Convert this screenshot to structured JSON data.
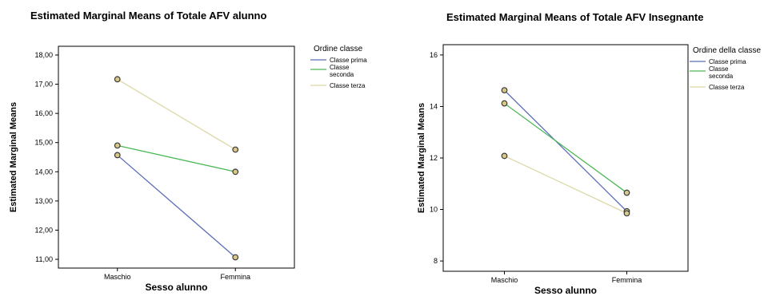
{
  "chart_data": [
    {
      "type": "line",
      "title": "Estimated Marginal Means of Totale AFV alunno",
      "xlabel": "Sesso alunno",
      "ylabel": "Estimated Marginal Means",
      "categories": [
        "Maschio",
        "Femmina"
      ],
      "ylim": [
        10.7,
        18.3
      ],
      "yticks": [
        "11,00",
        "12,00",
        "13,00",
        "14,00",
        "15,00",
        "16,00",
        "17,00",
        "18,00"
      ],
      "ytick_values": [
        11,
        12,
        13,
        14,
        15,
        16,
        17,
        18
      ],
      "legend_title": "Ordine classe",
      "legend_position": "right",
      "series": [
        {
          "name": "Classe prima",
          "color": "#5b6db8",
          "values": [
            14.57,
            11.07
          ]
        },
        {
          "name": "Classe seconda",
          "color": "#4ab856",
          "values": [
            14.9,
            14.0
          ]
        },
        {
          "name": "Classe terza",
          "color": "#ddd8a8",
          "values": [
            17.17,
            14.76
          ]
        }
      ],
      "grid": false
    },
    {
      "type": "line",
      "title": "Estimated Marginal Means of Totale AFV Insegnante",
      "xlabel": "Sesso alunno",
      "ylabel": "Estimated Marginal Means",
      "categories": [
        "Maschio",
        "Femmina"
      ],
      "ylim": [
        7.6,
        16.4
      ],
      "yticks": [
        "8",
        "10",
        "12",
        "14",
        "16"
      ],
      "ytick_values": [
        8,
        10,
        12,
        14,
        16
      ],
      "legend_title": "Ordine della classe",
      "legend_position": "right",
      "series": [
        {
          "name": "Classe prima",
          "color": "#5b6db8",
          "values": [
            14.63,
            9.93
          ]
        },
        {
          "name": "Classe seconda",
          "color": "#4ab856",
          "values": [
            14.12,
            10.65
          ]
        },
        {
          "name": "Classe terza",
          "color": "#ddd8a8",
          "values": [
            12.08,
            9.85
          ]
        }
      ],
      "grid": false
    }
  ]
}
